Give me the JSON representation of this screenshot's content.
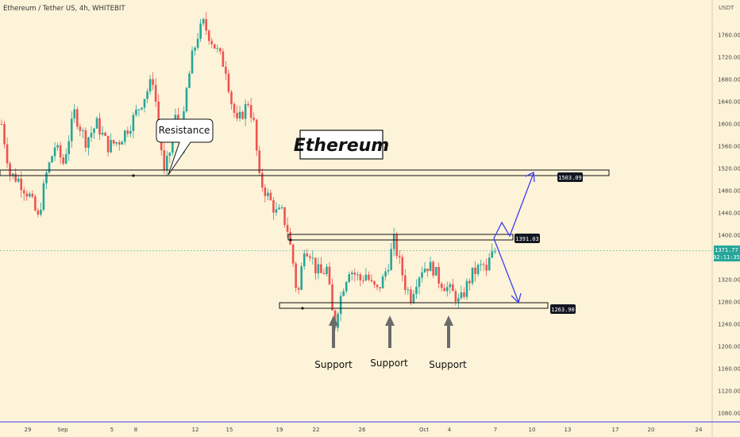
{
  "header": {
    "symbol": "Ethereum / Tether US, 4h, WHITEBIT",
    "currency": "USDT"
  },
  "chart_data": {
    "type": "candlestick",
    "title": "Ethereum",
    "ylim": [
      1060,
      1800
    ],
    "y_ticks": [
      1080,
      1120,
      1160,
      1200,
      1240,
      1280,
      1320,
      1360,
      1400,
      1440,
      1480,
      1520,
      1560,
      1600,
      1640,
      1680,
      1720,
      1760
    ],
    "y_tick_labels": [
      "1080.00",
      "1120.00",
      "1160.00",
      "1200.00",
      "1240.00",
      "1280.00",
      "1320.00",
      "1360.00",
      "1400.00",
      "1440.00",
      "1480.00",
      "1520.00",
      "1560.00",
      "1600.00",
      "1640.00",
      "1680.00",
      "1720.00",
      "1760.00"
    ],
    "x_ticks": [
      "29",
      "Sep",
      "5",
      "8",
      "12",
      "15",
      "19",
      "22",
      "26",
      "Oct",
      "4",
      "7",
      "10",
      "13",
      "17",
      "20",
      "24"
    ],
    "colors": {
      "up": "#26a69a",
      "down": "#ef5350",
      "projection": "#3d3df5",
      "levels_badge": "#131722",
      "last_price_badge": "#26a69a"
    },
    "last_price": {
      "value": "1371.77",
      "timer": "02:11:35"
    },
    "levels": [
      {
        "label": "1503.09",
        "value": 1503.09
      },
      {
        "label": "1391.03",
        "value": 1391.03
      },
      {
        "label": "1263.90",
        "value": 1263.9
      }
    ],
    "annotations": {
      "resistance": "Resistance",
      "supports": [
        "Support",
        "Support",
        "Support"
      ]
    },
    "path_keypoints": [
      [
        0,
        1600
      ],
      [
        3,
        1510
      ],
      [
        6,
        1500
      ],
      [
        10,
        1470
      ],
      [
        13,
        1430
      ],
      [
        16,
        1510
      ],
      [
        19,
        1560
      ],
      [
        22,
        1530
      ],
      [
        26,
        1620
      ],
      [
        30,
        1570
      ],
      [
        34,
        1600
      ],
      [
        38,
        1560
      ],
      [
        42,
        1570
      ],
      [
        46,
        1600
      ],
      [
        50,
        1640
      ],
      [
        54,
        1680
      ],
      [
        56,
        1600
      ],
      [
        58,
        1510
      ],
      [
        60,
        1550
      ],
      [
        62,
        1610
      ],
      [
        64,
        1560
      ],
      [
        66,
        1660
      ],
      [
        68,
        1720
      ],
      [
        70,
        1760
      ],
      [
        72,
        1780
      ],
      [
        74,
        1760
      ],
      [
        76,
        1740
      ],
      [
        78,
        1720
      ],
      [
        80,
        1700
      ],
      [
        82,
        1640
      ],
      [
        84,
        1600
      ],
      [
        86,
        1620
      ],
      [
        88,
        1640
      ],
      [
        90,
        1600
      ],
      [
        92,
        1500
      ],
      [
        94,
        1480
      ],
      [
        96,
        1460
      ],
      [
        98,
        1440
      ],
      [
        100,
        1440
      ],
      [
        102,
        1410
      ],
      [
        104,
        1350
      ],
      [
        105,
        1310
      ],
      [
        106,
        1300
      ],
      [
        107,
        1340
      ],
      [
        108,
        1380
      ],
      [
        110,
        1370
      ],
      [
        112,
        1340
      ],
      [
        114,
        1330
      ],
      [
        116,
        1340
      ],
      [
        117,
        1300
      ],
      [
        118,
        1260
      ],
      [
        119,
        1240
      ],
      [
        120,
        1270
      ],
      [
        122,
        1310
      ],
      [
        124,
        1340
      ],
      [
        126,
        1330
      ],
      [
        128,
        1320
      ],
      [
        130,
        1330
      ],
      [
        132,
        1310
      ],
      [
        134,
        1300
      ],
      [
        136,
        1320
      ],
      [
        138,
        1350
      ],
      [
        140,
        1390
      ],
      [
        142,
        1350
      ],
      [
        144,
        1310
      ],
      [
        146,
        1290
      ],
      [
        148,
        1320
      ],
      [
        150,
        1340
      ],
      [
        152,
        1345
      ],
      [
        154,
        1340
      ],
      [
        156,
        1320
      ],
      [
        158,
        1310
      ],
      [
        160,
        1300
      ],
      [
        162,
        1290
      ],
      [
        163,
        1280
      ],
      [
        164,
        1285
      ],
      [
        166,
        1310
      ],
      [
        168,
        1330
      ],
      [
        170,
        1340
      ],
      [
        172,
        1345
      ],
      [
        173,
        1330
      ],
      [
        174,
        1355
      ],
      [
        176,
        1372
      ]
    ]
  }
}
